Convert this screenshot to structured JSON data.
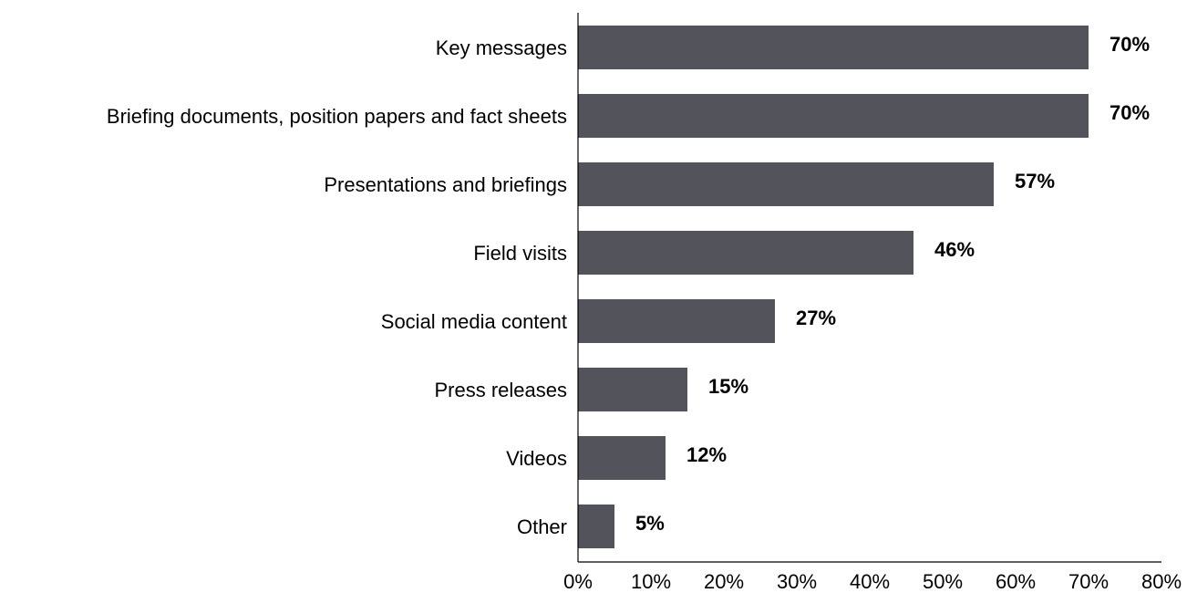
{
  "chart_data": {
    "type": "bar",
    "orientation": "horizontal",
    "categories": [
      "Key messages",
      "Briefing documents, position papers and fact sheets",
      "Presentations and briefings",
      "Field visits",
      "Social media content",
      "Press releases",
      "Videos",
      "Other"
    ],
    "values": [
      70,
      70,
      57,
      46,
      27,
      15,
      12,
      5
    ],
    "data_labels": [
      "70%",
      "70%",
      "57%",
      "46%",
      "27%",
      "15%",
      "12%",
      "5%"
    ],
    "xlim": [
      0,
      80
    ],
    "x_ticks": [
      0,
      10,
      20,
      30,
      40,
      50,
      60,
      70,
      80
    ],
    "x_tick_labels": [
      "0%",
      "10%",
      "20%",
      "30%",
      "40%",
      "50%",
      "60%",
      "70%",
      "80%"
    ],
    "title": "",
    "xlabel": "",
    "ylabel": "",
    "grid": false,
    "legend": "none",
    "bar_color": "#53535c"
  }
}
